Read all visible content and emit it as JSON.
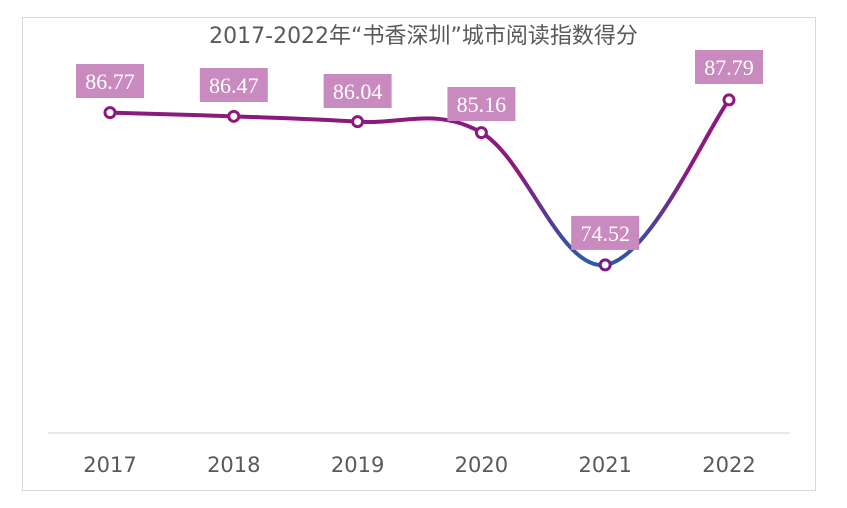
{
  "chart_data": {
    "type": "line",
    "title": "2017-2022年“书香深圳”城市阅读指数得分",
    "categories": [
      "2017",
      "2018",
      "2019",
      "2020",
      "2021",
      "2022"
    ],
    "values": [
      86.77,
      86.47,
      86.04,
      85.16,
      74.52,
      87.79
    ],
    "data_labels": [
      "86.77",
      "86.47",
      "86.04",
      "85.16",
      "74.52",
      "87.79"
    ],
    "ylim": [
      61,
      91
    ],
    "grid": false,
    "legend": "none",
    "colors": {
      "line_main": "#8b1a7e",
      "line_gradient_bottom": "#0a6fb5",
      "label_bg": "#c98bbf",
      "label_text": "#ffffff",
      "axis": "#d9d9d9",
      "tick_text": "#595959"
    }
  }
}
